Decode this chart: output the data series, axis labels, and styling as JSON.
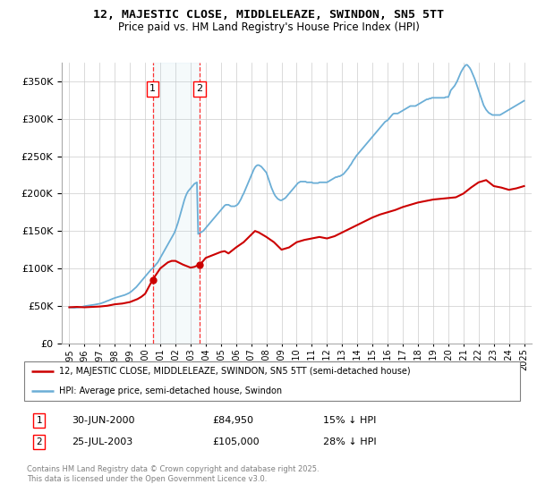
{
  "title": "12, MAJESTIC CLOSE, MIDDLELEAZE, SWINDON, SN5 5TT",
  "subtitle": "Price paid vs. HM Land Registry's House Price Index (HPI)",
  "legend_line1": "12, MAJESTIC CLOSE, MIDDLELEAZE, SWINDON, SN5 5TT (semi-detached house)",
  "legend_line2": "HPI: Average price, semi-detached house, Swindon",
  "footer": "Contains HM Land Registry data © Crown copyright and database right 2025.\nThis data is licensed under the Open Government Licence v3.0.",
  "sale1_label": "1",
  "sale1_date": "30-JUN-2000",
  "sale1_price": "£84,950",
  "sale1_hpi": "15% ↓ HPI",
  "sale1_y": 84950,
  "sale2_label": "2",
  "sale2_date": "25-JUL-2003",
  "sale2_price": "£105,000",
  "sale2_hpi": "28% ↓ HPI",
  "sale2_y": 105000,
  "hpi_color": "#6baed6",
  "price_color": "#cc0000",
  "background_color": "#ffffff",
  "grid_color": "#cccccc",
  "sale1_x": 2000.5,
  "sale2_x": 2003.57,
  "ylim": [
    0,
    375000
  ],
  "xlim": [
    1994.5,
    2025.5
  ],
  "yticks": [
    0,
    50000,
    100000,
    150000,
    200000,
    250000,
    300000,
    350000
  ],
  "xticks": [
    1995,
    1996,
    1997,
    1998,
    1999,
    2000,
    2001,
    2002,
    2003,
    2004,
    2005,
    2006,
    2007,
    2008,
    2009,
    2010,
    2011,
    2012,
    2013,
    2014,
    2015,
    2016,
    2017,
    2018,
    2019,
    2020,
    2021,
    2022,
    2023,
    2024,
    2025
  ],
  "hpi_data_x": [
    1995.0,
    1995.083,
    1995.167,
    1995.25,
    1995.333,
    1995.417,
    1995.5,
    1995.583,
    1995.667,
    1995.75,
    1995.833,
    1995.917,
    1996.0,
    1996.083,
    1996.167,
    1996.25,
    1996.333,
    1996.417,
    1996.5,
    1996.583,
    1996.667,
    1996.75,
    1996.833,
    1996.917,
    1997.0,
    1997.083,
    1997.167,
    1997.25,
    1997.333,
    1997.417,
    1997.5,
    1997.583,
    1997.667,
    1997.75,
    1997.833,
    1997.917,
    1998.0,
    1998.083,
    1998.167,
    1998.25,
    1998.333,
    1998.417,
    1998.5,
    1998.583,
    1998.667,
    1998.75,
    1998.833,
    1998.917,
    1999.0,
    1999.083,
    1999.167,
    1999.25,
    1999.333,
    1999.417,
    1999.5,
    1999.583,
    1999.667,
    1999.75,
    1999.833,
    1999.917,
    2000.0,
    2000.083,
    2000.167,
    2000.25,
    2000.333,
    2000.417,
    2000.5,
    2000.583,
    2000.667,
    2000.75,
    2000.833,
    2000.917,
    2001.0,
    2001.083,
    2001.167,
    2001.25,
    2001.333,
    2001.417,
    2001.5,
    2001.583,
    2001.667,
    2001.75,
    2001.833,
    2001.917,
    2002.0,
    2002.083,
    2002.167,
    2002.25,
    2002.333,
    2002.417,
    2002.5,
    2002.583,
    2002.667,
    2002.75,
    2002.833,
    2002.917,
    2003.0,
    2003.083,
    2003.167,
    2003.25,
    2003.333,
    2003.417,
    2003.5,
    2003.583,
    2003.667,
    2003.75,
    2003.833,
    2003.917,
    2004.0,
    2004.083,
    2004.167,
    2004.25,
    2004.333,
    2004.417,
    2004.5,
    2004.583,
    2004.667,
    2004.75,
    2004.833,
    2004.917,
    2005.0,
    2005.083,
    2005.167,
    2005.25,
    2005.333,
    2005.417,
    2005.5,
    2005.583,
    2005.667,
    2005.75,
    2005.833,
    2005.917,
    2006.0,
    2006.083,
    2006.167,
    2006.25,
    2006.333,
    2006.417,
    2006.5,
    2006.583,
    2006.667,
    2006.75,
    2006.833,
    2006.917,
    2007.0,
    2007.083,
    2007.167,
    2007.25,
    2007.333,
    2007.417,
    2007.5,
    2007.583,
    2007.667,
    2007.75,
    2007.833,
    2007.917,
    2008.0,
    2008.083,
    2008.167,
    2008.25,
    2008.333,
    2008.417,
    2008.5,
    2008.583,
    2008.667,
    2008.75,
    2008.833,
    2008.917,
    2009.0,
    2009.083,
    2009.167,
    2009.25,
    2009.333,
    2009.417,
    2009.5,
    2009.583,
    2009.667,
    2009.75,
    2009.833,
    2009.917,
    2010.0,
    2010.083,
    2010.167,
    2010.25,
    2010.333,
    2010.417,
    2010.5,
    2010.583,
    2010.667,
    2010.75,
    2010.833,
    2010.917,
    2011.0,
    2011.083,
    2011.167,
    2011.25,
    2011.333,
    2011.417,
    2011.5,
    2011.583,
    2011.667,
    2011.75,
    2011.833,
    2011.917,
    2012.0,
    2012.083,
    2012.167,
    2012.25,
    2012.333,
    2012.417,
    2012.5,
    2012.583,
    2012.667,
    2012.75,
    2012.833,
    2012.917,
    2013.0,
    2013.083,
    2013.167,
    2013.25,
    2013.333,
    2013.417,
    2013.5,
    2013.583,
    2013.667,
    2013.75,
    2013.833,
    2013.917,
    2014.0,
    2014.083,
    2014.167,
    2014.25,
    2014.333,
    2014.417,
    2014.5,
    2014.583,
    2014.667,
    2014.75,
    2014.833,
    2014.917,
    2015.0,
    2015.083,
    2015.167,
    2015.25,
    2015.333,
    2015.417,
    2015.5,
    2015.583,
    2015.667,
    2015.75,
    2015.833,
    2015.917,
    2016.0,
    2016.083,
    2016.167,
    2016.25,
    2016.333,
    2016.417,
    2016.5,
    2016.583,
    2016.667,
    2016.75,
    2016.833,
    2016.917,
    2017.0,
    2017.083,
    2017.167,
    2017.25,
    2017.333,
    2017.417,
    2017.5,
    2017.583,
    2017.667,
    2017.75,
    2017.833,
    2017.917,
    2018.0,
    2018.083,
    2018.167,
    2018.25,
    2018.333,
    2018.417,
    2018.5,
    2018.583,
    2018.667,
    2018.75,
    2018.833,
    2018.917,
    2019.0,
    2019.083,
    2019.167,
    2019.25,
    2019.333,
    2019.417,
    2019.5,
    2019.583,
    2019.667,
    2019.75,
    2019.833,
    2019.917,
    2020.0,
    2020.083,
    2020.167,
    2020.25,
    2020.333,
    2020.417,
    2020.5,
    2020.583,
    2020.667,
    2020.75,
    2020.833,
    2020.917,
    2021.0,
    2021.083,
    2021.167,
    2021.25,
    2021.333,
    2021.417,
    2021.5,
    2021.583,
    2021.667,
    2021.75,
    2021.833,
    2021.917,
    2022.0,
    2022.083,
    2022.167,
    2022.25,
    2022.333,
    2022.417,
    2022.5,
    2022.583,
    2022.667,
    2022.75,
    2022.833,
    2022.917,
    2023.0,
    2023.083,
    2023.167,
    2023.25,
    2023.333,
    2023.417,
    2023.5,
    2023.583,
    2023.667,
    2023.75,
    2023.833,
    2023.917,
    2024.0,
    2024.083,
    2024.167,
    2024.25,
    2024.333,
    2024.417,
    2024.5,
    2024.583,
    2024.667,
    2024.75,
    2024.833,
    2024.917,
    2025.0
  ],
  "hpi_data_y": [
    48000,
    47800,
    47600,
    47500,
    47400,
    47500,
    47600,
    47800,
    48000,
    48300,
    48600,
    49000,
    49500,
    49800,
    50000,
    50200,
    50500,
    50800,
    51000,
    51200,
    51500,
    51800,
    52000,
    52300,
    52800,
    53200,
    53800,
    54500,
    55000,
    55800,
    56500,
    57000,
    57800,
    58500,
    59200,
    59800,
    60500,
    61000,
    61500,
    62000,
    62500,
    63000,
    63500,
    64000,
    64500,
    65200,
    66000,
    66800,
    67800,
    69000,
    70500,
    72000,
    73500,
    75000,
    77000,
    79000,
    81000,
    83000,
    85000,
    87000,
    89000,
    91000,
    93000,
    95000,
    97000,
    99000,
    100000,
    102000,
    104000,
    106000,
    108000,
    111000,
    114000,
    117000,
    120000,
    123000,
    126000,
    129000,
    132000,
    135000,
    138000,
    141000,
    144000,
    147000,
    151000,
    156000,
    161000,
    167000,
    173000,
    179000,
    185000,
    191000,
    196000,
    200000,
    203000,
    205000,
    207000,
    209000,
    211000,
    213000,
    214000,
    215000,
    146000,
    147000,
    148000,
    149000,
    150000,
    152000,
    154000,
    156000,
    158000,
    160000,
    162000,
    164000,
    166000,
    168000,
    170000,
    172000,
    174000,
    176000,
    178000,
    180000,
    182000,
    184000,
    185000,
    185000,
    185000,
    184000,
    183000,
    183000,
    183000,
    183000,
    184000,
    185000,
    187000,
    190000,
    193000,
    197000,
    200000,
    204000,
    208000,
    212000,
    216000,
    220000,
    224000,
    228000,
    232000,
    235000,
    237000,
    238000,
    238000,
    237000,
    236000,
    234000,
    232000,
    230000,
    228000,
    223000,
    218000,
    213000,
    208000,
    204000,
    200000,
    197000,
    195000,
    193000,
    192000,
    191000,
    191000,
    192000,
    193000,
    194000,
    196000,
    198000,
    200000,
    202000,
    204000,
    206000,
    208000,
    210000,
    212000,
    214000,
    215000,
    216000,
    216000,
    216000,
    216000,
    216000,
    215000,
    215000,
    215000,
    215000,
    215000,
    214000,
    214000,
    214000,
    214000,
    214000,
    215000,
    215000,
    215000,
    215000,
    215000,
    215000,
    215000,
    216000,
    217000,
    218000,
    219000,
    220000,
    221000,
    222000,
    222000,
    223000,
    223000,
    224000,
    225000,
    226000,
    228000,
    230000,
    232000,
    234000,
    237000,
    239000,
    242000,
    245000,
    247000,
    250000,
    252000,
    254000,
    256000,
    258000,
    260000,
    262000,
    264000,
    266000,
    268000,
    270000,
    272000,
    274000,
    276000,
    278000,
    280000,
    282000,
    284000,
    286000,
    288000,
    290000,
    292000,
    294000,
    296000,
    297000,
    298000,
    300000,
    302000,
    304000,
    306000,
    307000,
    307000,
    307000,
    307000,
    308000,
    309000,
    310000,
    311000,
    312000,
    313000,
    314000,
    315000,
    316000,
    317000,
    317000,
    317000,
    317000,
    317000,
    318000,
    319000,
    320000,
    321000,
    322000,
    323000,
    324000,
    325000,
    326000,
    326000,
    327000,
    327000,
    328000,
    328000,
    328000,
    328000,
    328000,
    328000,
    328000,
    328000,
    328000,
    328000,
    328000,
    329000,
    329000,
    329000,
    333000,
    338000,
    340000,
    342000,
    344000,
    347000,
    350000,
    354000,
    358000,
    362000,
    365000,
    368000,
    370000,
    372000,
    372000,
    370000,
    368000,
    365000,
    361000,
    357000,
    353000,
    348000,
    343000,
    338000,
    333000,
    328000,
    323000,
    318000,
    315000,
    312000,
    310000,
    308000,
    307000,
    306000,
    305000,
    305000,
    305000,
    305000,
    305000,
    305000,
    305000,
    306000,
    307000,
    308000,
    309000,
    310000,
    311000,
    312000,
    313000,
    314000,
    315000,
    316000,
    317000,
    318000,
    319000,
    320000,
    321000,
    322000,
    323000,
    324000,
    325000,
    326000,
    327000,
    328000,
    329000,
    330000,
    331000,
    332000,
    333000,
    334000,
    335000,
    336000
  ],
  "price_data_x": [
    1995.0,
    1995.5,
    1995.75,
    1996.0,
    1996.5,
    1997.0,
    1997.5,
    1997.75,
    1998.0,
    1998.5,
    1999.0,
    1999.25,
    1999.5,
    1999.75,
    2000.0,
    2000.5,
    2001.0,
    2001.5,
    2001.75,
    2002.0,
    2002.5,
    2003.0,
    2003.25,
    2003.57,
    2003.75,
    2004.0,
    2004.5,
    2005.0,
    2005.25,
    2005.5,
    2006.0,
    2006.5,
    2007.0,
    2007.25,
    2007.5,
    2007.75,
    2008.0,
    2008.5,
    2009.0,
    2009.5,
    2010.0,
    2010.5,
    2011.0,
    2011.5,
    2012.0,
    2012.5,
    2013.0,
    2013.5,
    2014.0,
    2014.5,
    2015.0,
    2015.5,
    2016.0,
    2016.5,
    2017.0,
    2017.5,
    2018.0,
    2018.5,
    2019.0,
    2019.5,
    2020.0,
    2020.5,
    2021.0,
    2021.5,
    2022.0,
    2022.5,
    2023.0,
    2023.5,
    2024.0,
    2024.5,
    2025.0
  ],
  "price_data_y": [
    48000,
    48500,
    48200,
    48000,
    48500,
    49000,
    50000,
    51000,
    52000,
    53000,
    55000,
    57000,
    59000,
    62000,
    66000,
    84950,
    100000,
    108000,
    110000,
    110000,
    105000,
    101000,
    102000,
    105000,
    108000,
    114000,
    118000,
    122000,
    123000,
    120000,
    128000,
    135000,
    145000,
    150000,
    148000,
    145000,
    142000,
    135000,
    125000,
    128000,
    135000,
    138000,
    140000,
    142000,
    140000,
    143000,
    148000,
    153000,
    158000,
    163000,
    168000,
    172000,
    175000,
    178000,
    182000,
    185000,
    188000,
    190000,
    192000,
    193000,
    194000,
    195000,
    200000,
    208000,
    215000,
    218000,
    210000,
    208000,
    205000,
    207000,
    210000
  ]
}
